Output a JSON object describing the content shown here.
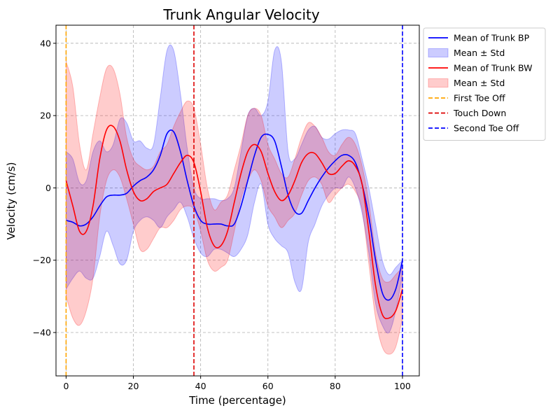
{
  "chart_data": {
    "type": "line",
    "title": "Trunk Angular Velocity",
    "xlabel": "Time (percentage)",
    "ylabel": "Velocity (cm/s)",
    "xlim": [
      -3,
      105
    ],
    "ylim": [
      -52,
      45
    ],
    "xticks": [
      0,
      20,
      40,
      60,
      80,
      100
    ],
    "yticks": [
      -40,
      -20,
      0,
      20,
      40
    ],
    "grid": true,
    "legend_position": "outside-top-right",
    "x": [
      0,
      2,
      4,
      6,
      8,
      10,
      12,
      14,
      16,
      18,
      20,
      22,
      24,
      26,
      28,
      30,
      32,
      34,
      36,
      38,
      40,
      42,
      44,
      46,
      48,
      50,
      52,
      54,
      56,
      58,
      60,
      62,
      64,
      66,
      68,
      70,
      72,
      74,
      76,
      78,
      80,
      82,
      84,
      86,
      88,
      90,
      92,
      94,
      96,
      98,
      100
    ],
    "series": [
      {
        "name": "Mean of Trunk BP",
        "color": "#0000ff",
        "fill_color": "#0000ff",
        "fill_label": "Mean ± Std",
        "mean": [
          -9,
          -9.5,
          -10.5,
          -10,
          -8,
          -5,
          -2.5,
          -2,
          -2,
          -1.5,
          0.5,
          2,
          3,
          5,
          9,
          15,
          15.5,
          10,
          2,
          -5,
          -9,
          -10,
          -10,
          -10,
          -10.5,
          -10,
          -5,
          2,
          9,
          14,
          14.8,
          13,
          6,
          -2,
          -6.5,
          -7,
          -3.5,
          0,
          3,
          5.5,
          7.5,
          9,
          9,
          7,
          1,
          -8,
          -20,
          -29,
          -31,
          -28,
          -20
        ],
        "upper": [
          10,
          8,
          1.5,
          2,
          10,
          13,
          10,
          12,
          19,
          18,
          13,
          13,
          11,
          12,
          25,
          38,
          38,
          26,
          11,
          0,
          -3,
          -3,
          -3,
          -3.5,
          -3,
          0,
          10,
          20,
          22,
          20,
          24,
          38,
          35,
          10,
          8,
          12,
          16,
          17,
          14,
          13.5,
          15,
          16,
          16,
          15,
          8,
          0,
          -10,
          -20,
          -24,
          -22,
          -20
        ],
        "lower": [
          -28,
          -25,
          -23,
          -25,
          -25,
          -19,
          -12,
          -16,
          -21,
          -20,
          -12,
          -9,
          -8,
          -9,
          -11,
          -8,
          -6,
          -4,
          -8,
          -14,
          -18,
          -19,
          -17,
          -17,
          -18,
          -19,
          -17,
          -13,
          -4,
          1,
          -10,
          -14,
          -16,
          -18,
          -26,
          -28,
          -15,
          -10,
          -5,
          -2,
          0,
          0,
          3,
          0,
          -7,
          -18,
          -32,
          -38,
          -40,
          -34,
          -24
        ]
      },
      {
        "name": "Mean of Trunk BW",
        "color": "#ff0000",
        "fill_color": "#ff0000",
        "fill_label": "Mean ± Std",
        "mean": [
          2,
          -5,
          -12,
          -12,
          -5,
          8,
          16,
          17,
          13,
          5,
          -1,
          -3.5,
          -3,
          -1,
          0,
          1,
          4,
          7,
          9,
          7,
          -1,
          -11,
          -16,
          -16,
          -12,
          -4,
          4,
          10,
          12,
          10,
          4,
          -1,
          -3.5,
          -2,
          2,
          7,
          9.5,
          9.5,
          7,
          4,
          4,
          6,
          7.5,
          6,
          1,
          -12,
          -27,
          -35,
          -36,
          -34,
          -28
        ],
        "upper": [
          35,
          28,
          12,
          5,
          15,
          25,
          33,
          33,
          26,
          14,
          8,
          6,
          5,
          6,
          10,
          12,
          17,
          21,
          24,
          22,
          12,
          0,
          -6,
          -4,
          -2,
          5,
          12,
          20,
          22,
          20,
          12,
          8,
          4,
          3,
          8,
          14,
          18,
          17,
          14,
          10,
          9,
          12,
          14,
          12,
          6,
          -4,
          -18,
          -25,
          -26,
          -24,
          -22
        ],
        "lower": [
          -30,
          -36,
          -38,
          -34,
          -25,
          -8,
          2,
          5,
          3,
          -3,
          -10,
          -17,
          -17,
          -14,
          -11,
          -11,
          -9,
          -6,
          -5,
          -6,
          -12,
          -20,
          -23,
          -22,
          -20,
          -12,
          -3,
          2,
          5,
          2,
          -5,
          -8,
          -11,
          -9,
          -7,
          -2,
          2,
          3,
          1,
          -4,
          -2,
          0,
          1,
          -1,
          -6,
          -21,
          -36,
          -44,
          -46,
          -44,
          -36
        ]
      }
    ],
    "vlines": [
      {
        "x": 0,
        "name": "First Toe Off",
        "color": "#ffa500"
      },
      {
        "x": 38,
        "name": "Touch Down",
        "color": "#dd0000"
      },
      {
        "x": 100,
        "name": "Second Toe Off",
        "color": "#0000ff"
      }
    ],
    "legend": [
      {
        "label": "Mean of Trunk BP",
        "kind": "line",
        "color": "#0000ff"
      },
      {
        "label": "Mean ± Std",
        "kind": "patch",
        "color": "#0000ff"
      },
      {
        "label": "Mean of Trunk BW",
        "kind": "line",
        "color": "#ff0000"
      },
      {
        "label": "Mean ± Std",
        "kind": "patch",
        "color": "#ff0000"
      },
      {
        "label": "First Toe Off",
        "kind": "dashed",
        "color": "#ffa500"
      },
      {
        "label": "Touch Down",
        "kind": "dashed",
        "color": "#dd0000"
      },
      {
        "label": "Second Toe Off",
        "kind": "dashed",
        "color": "#0000ff"
      }
    ]
  }
}
